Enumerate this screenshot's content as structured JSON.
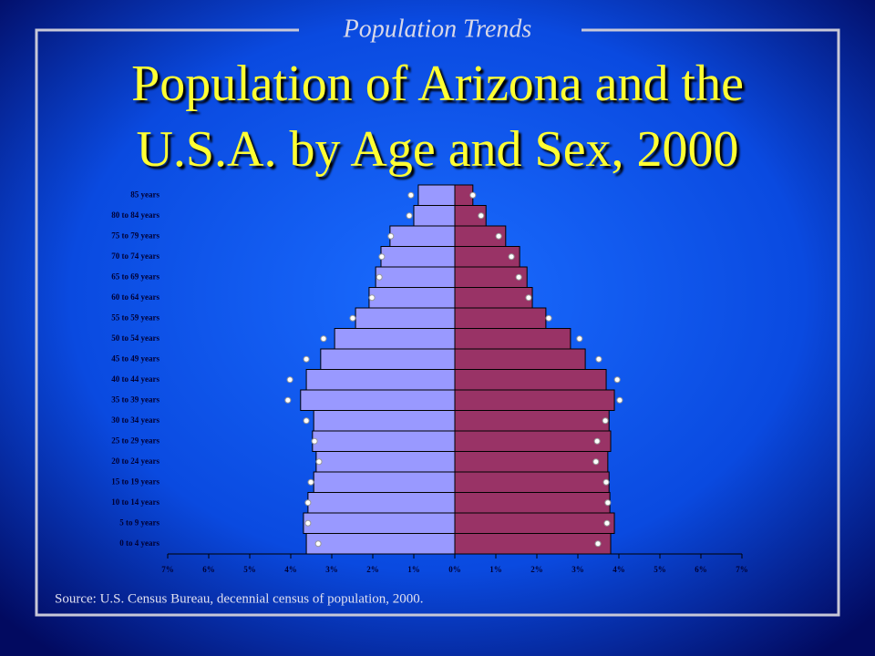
{
  "header": {
    "subtitle": "Population Trends",
    "title": [
      "Population of Arizona and the",
      "U.S.A. by Age and Sex, 2000"
    ]
  },
  "chart_data": {
    "type": "pyramid",
    "categories": [
      "0 to 4 years",
      "5 to 9 years",
      "10 to 14 years",
      "15 to 19 years",
      "20 to 24 years",
      "25 to 29 years",
      "30 to 34 years",
      "35 to 39 years",
      "40 to 44 years",
      "45 to 49 years",
      "50 to 54 years",
      "55 to 59 years",
      "60 to 64 years",
      "65 to 69 years",
      "70 to 74 years",
      "75 to 79 years",
      "80 to 84 years",
      "85 years"
    ],
    "series": [
      {
        "color": "#9999ff",
        "values": [
          -3.62,
          -3.69,
          -3.58,
          -3.44,
          -3.38,
          -3.47,
          -3.44,
          -3.76,
          -3.62,
          -3.27,
          -2.93,
          -2.42,
          -2.09,
          -1.93,
          -1.8,
          -1.58,
          -1.0,
          -0.89
        ]
      },
      {
        "color": "#993366",
        "values": [
          3.8,
          3.89,
          3.78,
          3.76,
          3.73,
          3.8,
          3.76,
          3.89,
          3.69,
          3.18,
          2.82,
          2.22,
          1.89,
          1.76,
          1.58,
          1.24,
          0.76,
          0.44
        ]
      }
    ],
    "markers": [
      {
        "color": "#ffffff",
        "values": [
          -3.33,
          -3.58,
          -3.58,
          -3.51,
          -3.31,
          -3.42,
          -3.62,
          -4.07,
          -4.02,
          -3.62,
          -3.2,
          -2.49,
          -2.02,
          -1.84,
          -1.78,
          -1.56,
          -1.11,
          -1.07
        ]
      },
      {
        "color": "#ffffff",
        "values": [
          3.49,
          3.71,
          3.73,
          3.69,
          3.44,
          3.47,
          3.67,
          4.02,
          3.96,
          3.51,
          3.04,
          2.29,
          1.8,
          1.56,
          1.38,
          1.07,
          0.64,
          0.44
        ]
      }
    ],
    "xlim": [
      -7,
      7
    ],
    "xticks": [
      {
        "value": -7,
        "label": "7%"
      },
      {
        "value": -6,
        "label": "6%"
      },
      {
        "value": -5,
        "label": "5%"
      },
      {
        "value": -4,
        "label": "4%"
      },
      {
        "value": -3,
        "label": "3%"
      },
      {
        "value": -2,
        "label": "2%"
      },
      {
        "value": -1,
        "label": "1%"
      },
      {
        "value": 0,
        "label": "0%"
      },
      {
        "value": 1,
        "label": "1%"
      },
      {
        "value": 2,
        "label": "2%"
      },
      {
        "value": 3,
        "label": "3%"
      },
      {
        "value": 4,
        "label": "4%"
      },
      {
        "value": 5,
        "label": "5%"
      },
      {
        "value": 6,
        "label": "6%"
      },
      {
        "value": 7,
        "label": "7%"
      }
    ]
  },
  "footer": {
    "source": "Source: U.S. Census Bureau, decennial census of population, 2000."
  }
}
